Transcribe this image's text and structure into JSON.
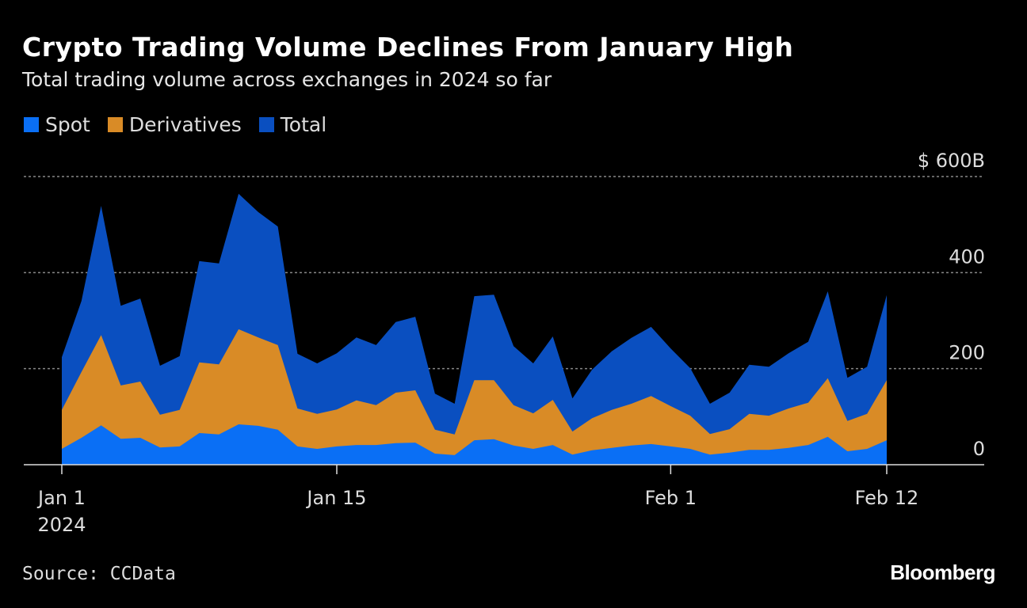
{
  "chart_data": {
    "type": "area",
    "title": "Crypto Trading Volume Declines From January High",
    "subtitle": "Total trading volume across exchanges in 2024 so far",
    "source": "Source: CCData",
    "logo": "Bloomberg",
    "x_start": "2024-01-01",
    "x_end": "2024-02-12",
    "x_ticks": [
      {
        "date": "2024-01-01",
        "label": "Jan 1",
        "sublabel": "2024"
      },
      {
        "date": "2024-01-15",
        "label": "Jan 15"
      },
      {
        "date": "2024-02-01",
        "label": "Feb 1"
      },
      {
        "date": "2024-02-12",
        "label": "Feb 12"
      }
    ],
    "y_ticks": [
      {
        "value": 0,
        "label": "0"
      },
      {
        "value": 200,
        "label": "200"
      },
      {
        "value": 400,
        "label": "400"
      },
      {
        "value": 600,
        "label": "$ 600B"
      }
    ],
    "ylim": [
      0,
      600
    ],
    "grid": true,
    "legend_placement": "top-left",
    "series": [
      {
        "name": "Total",
        "color": "#0a4fc0",
        "values": [
          224,
          341,
          539,
          331,
          346,
          206,
          226,
          424,
          419,
          564,
          526,
          496,
          231,
          211,
          232,
          265,
          249,
          297,
          308,
          148,
          127,
          351,
          354,
          247,
          211,
          267,
          138,
          198,
          236,
          264,
          287,
          242,
          201,
          127,
          150,
          208,
          204,
          232,
          256,
          361,
          181,
          204,
          353
        ]
      },
      {
        "name": "Derivatives",
        "color": "#d98b26",
        "values": [
          114,
          193,
          270,
          165,
          173,
          104,
          114,
          213,
          209,
          282,
          265,
          249,
          117,
          106,
          115,
          134,
          124,
          150,
          155,
          73,
          63,
          176,
          176,
          124,
          107,
          135,
          69,
          97,
          114,
          127,
          143,
          122,
          102,
          64,
          74,
          106,
          102,
          117,
          129,
          180,
          91,
          106,
          176
        ]
      },
      {
        "name": "Spot",
        "color": "#0a6ff5",
        "values": [
          33,
          56,
          82,
          54,
          56,
          36,
          38,
          66,
          63,
          84,
          81,
          73,
          38,
          33,
          38,
          41,
          41,
          45,
          46,
          23,
          20,
          51,
          53,
          40,
          33,
          41,
          21,
          30,
          35,
          40,
          43,
          38,
          33,
          21,
          25,
          31,
          31,
          35,
          41,
          58,
          28,
          33,
          51
        ]
      }
    ]
  }
}
